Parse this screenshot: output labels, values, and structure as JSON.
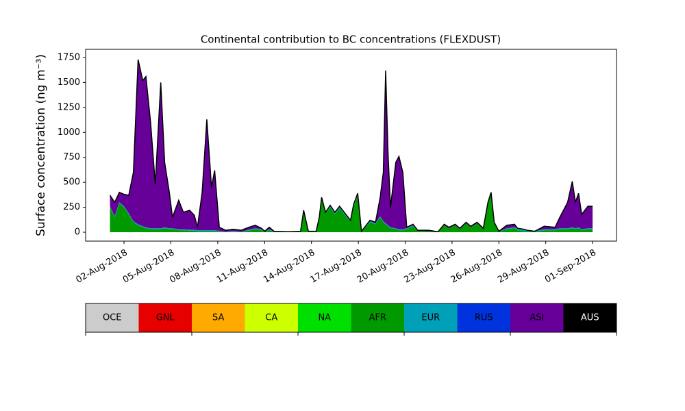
{
  "chart_data": {
    "type": "stacked_area",
    "title": "Continental contribution to BC concentrations (FLEXDUST)",
    "y_label": "Surface concentration (ng m⁻³)",
    "x": [
      1.1,
      1.4,
      1.7,
      2.0,
      2.3,
      2.6,
      2.9,
      3.2,
      3.4,
      3.7,
      4.0,
      4.35,
      4.6,
      4.9,
      5.1,
      5.5,
      5.8,
      6.2,
      6.5,
      6.7,
      7.0,
      7.3,
      7.6,
      7.8,
      8.1,
      8.5,
      9.0,
      9.5,
      10.0,
      10.4,
      10.8,
      11.0,
      11.3,
      11.6,
      12.5,
      13.3,
      13.5,
      13.8,
      14.3,
      14.5,
      14.65,
      14.9,
      15.2,
      15.5,
      15.8,
      16.2,
      16.5,
      16.7,
      16.96,
      17.2,
      17.75,
      18.1,
      18.4,
      18.6,
      18.75,
      18.9,
      19.06,
      19.4,
      19.6,
      19.85,
      20.1,
      20.5,
      20.8,
      21.5,
      22.1,
      22.5,
      22.8,
      23.2,
      23.5,
      23.9,
      24.2,
      24.6,
      25.0,
      25.3,
      25.5,
      25.7,
      26.0,
      26.5,
      27.0,
      27.2,
      27.6,
      27.8,
      28.3,
      28.9,
      29.6,
      29.9,
      30.4,
      30.7,
      30.9,
      31.1,
      31.3,
      31.7,
      32.0
    ],
    "series": [
      {
        "name": "AFR",
        "color": "#009900",
        "values": [
          250,
          150,
          290,
          250,
          180,
          100,
          70,
          50,
          40,
          30,
          30,
          30,
          40,
          30,
          30,
          20,
          20,
          15,
          15,
          10,
          10,
          10,
          10,
          10,
          5,
          5,
          5,
          5,
          15,
          30,
          20,
          5,
          20,
          5,
          5,
          10,
          200,
          10,
          10,
          140,
          330,
          190,
          250,
          180,
          240,
          160,
          110,
          260,
          360,
          10,
          100,
          80,
          150,
          100,
          80,
          60,
          40,
          30,
          20,
          20,
          30,
          60,
          15,
          10,
          5,
          70,
          40,
          70,
          30,
          90,
          50,
          90,
          30,
          290,
          390,
          90,
          5,
          30,
          40,
          20,
          10,
          10,
          5,
          20,
          20,
          30,
          30,
          40,
          30,
          40,
          20,
          30,
          30
        ]
      },
      {
        "name": "EUR",
        "color": "#00a0b8",
        "values": [
          10,
          10,
          10,
          10,
          10,
          10,
          10,
          10,
          10,
          10,
          10,
          10,
          10,
          10,
          10,
          10,
          10,
          10,
          10,
          10,
          10,
          10,
          10,
          10,
          10,
          0,
          10,
          0,
          10,
          10,
          10,
          0,
          10,
          0,
          0,
          0,
          10,
          0,
          0,
          0,
          10,
          0,
          10,
          10,
          10,
          10,
          0,
          10,
          10,
          0,
          10,
          10,
          10,
          10,
          10,
          10,
          10,
          10,
          10,
          10,
          10,
          10,
          0,
          0,
          0,
          0,
          0,
          0,
          0,
          0,
          0,
          0,
          0,
          0,
          0,
          0,
          0,
          10,
          10,
          20,
          20,
          10,
          5,
          10,
          10,
          10,
          10,
          10,
          10,
          10,
          10,
          10,
          10
        ]
      },
      {
        "name": "ASI",
        "color": "#660099",
        "values": [
          110,
          140,
          100,
          120,
          180,
          490,
          1650,
          1460,
          1510,
          1060,
          440,
          1460,
          650,
          360,
          110,
          290,
          170,
          195,
          145,
          30,
          380,
          1110,
          430,
          600,
          35,
          15,
          15,
          15,
          25,
          30,
          10,
          5,
          20,
          5,
          0,
          0,
          10,
          0,
          0,
          10,
          10,
          10,
          10,
          10,
          10,
          10,
          10,
          10,
          20,
          0,
          10,
          10,
          190,
          490,
          1530,
          730,
          200,
          660,
          730,
          570,
          10,
          10,
          5,
          10,
          0,
          10,
          10,
          10,
          10,
          10,
          10,
          10,
          10,
          10,
          10,
          10,
          5,
          30,
          30,
          0,
          0,
          0,
          0,
          30,
          20,
          110,
          260,
          460,
          260,
          340,
          150,
          220,
          220
        ]
      }
    ],
    "xlim": [
      -0.46,
      33.53
    ],
    "xticks": [
      {
        "value": 2,
        "label": "02-Aug-2018"
      },
      {
        "value": 5,
        "label": "05-Aug-2018"
      },
      {
        "value": 8,
        "label": "08-Aug-2018"
      },
      {
        "value": 11,
        "label": "11-Aug-2018"
      },
      {
        "value": 14,
        "label": "14-Aug-2018"
      },
      {
        "value": 17,
        "label": "17-Aug-2018"
      },
      {
        "value": 20,
        "label": "20-Aug-2018"
      },
      {
        "value": 23,
        "label": "23-Aug-2018"
      },
      {
        "value": 26,
        "label": "26-Aug-2018"
      },
      {
        "value": 29,
        "label": "29-Aug-2018"
      },
      {
        "value": 32,
        "label": "01-Sep-2018"
      }
    ],
    "ylim": [
      -89,
      1832
    ],
    "yticks": [
      0,
      250,
      500,
      750,
      1000,
      1250,
      1500,
      1750
    ],
    "outline_color": "#000000",
    "colorbar": {
      "labels": [
        "OCE",
        "GNL",
        "SA",
        "CA",
        "NA",
        "AFR",
        "EUR",
        "RUS",
        "ASI",
        "AUS"
      ],
      "colors": [
        "#cccccc",
        "#e60000",
        "#ffaa00",
        "#ccff00",
        "#00e000",
        "#009a00",
        "#00a0b8",
        "#0033dd",
        "#660099",
        "#000000"
      ]
    }
  }
}
